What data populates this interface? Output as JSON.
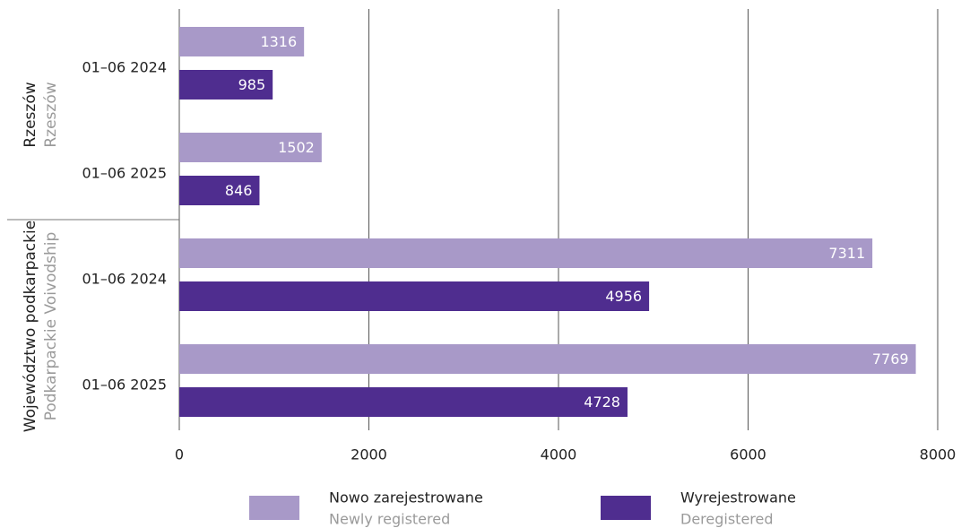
{
  "chart_data": {
    "type": "bar",
    "orientation": "horizontal",
    "groups": [
      {
        "name": "Rzeszów",
        "name_en": "Rzeszów",
        "categories": [
          "01–06 2024",
          "01–06 2025"
        ]
      },
      {
        "name": "Województwo podkarpackie",
        "name_en": "Podkarpackie Voivodship",
        "categories": [
          "01–06 2024",
          "01–06 2025"
        ]
      }
    ],
    "series": [
      {
        "name": "Nowo zarejestrowane",
        "name_en": "Newly registered",
        "color": "#a899c8",
        "values": [
          1316,
          1502,
          7311,
          7769
        ]
      },
      {
        "name": "Wyrejestrowane",
        "name_en": "Deregistered",
        "color": "#4f2d8f",
        "values": [
          985,
          846,
          4956,
          4728
        ]
      }
    ],
    "xlim": [
      0,
      8000
    ],
    "xticks": [
      0,
      2000,
      4000,
      6000,
      8000
    ],
    "grid": true
  }
}
